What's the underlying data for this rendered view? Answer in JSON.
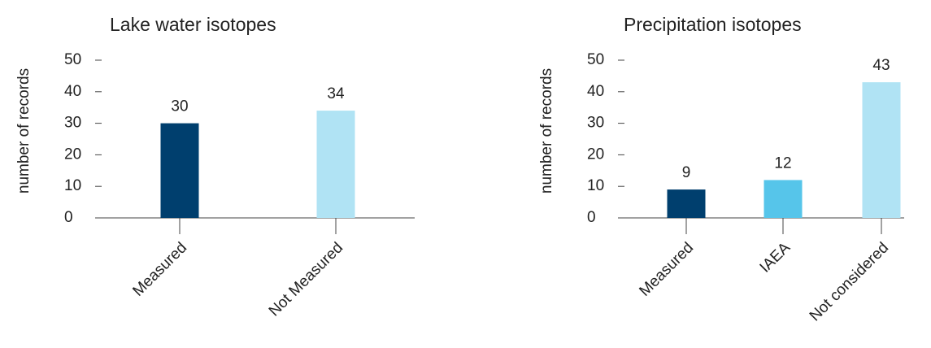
{
  "chart_data": [
    {
      "type": "bar",
      "title": "Lake water isotopes",
      "y_label": "number of records",
      "categories": [
        "Measured",
        "Not Measured"
      ],
      "values": [
        30,
        34
      ],
      "colors": [
        "#003f6e",
        "#b0e3f4"
      ],
      "ylim": [
        0,
        50
      ],
      "yticks": [
        0,
        10,
        20,
        30,
        40,
        50
      ]
    },
    {
      "type": "bar",
      "title": "Precipitation isotopes",
      "y_label": "number of records",
      "categories": [
        "Measured",
        "IAEA",
        "Not considered"
      ],
      "values": [
        9,
        12,
        43
      ],
      "colors": [
        "#003f6e",
        "#56c5ea",
        "#b0e3f4"
      ],
      "ylim": [
        0,
        50
      ],
      "yticks": [
        0,
        10,
        20,
        30,
        40,
        50
      ]
    }
  ]
}
